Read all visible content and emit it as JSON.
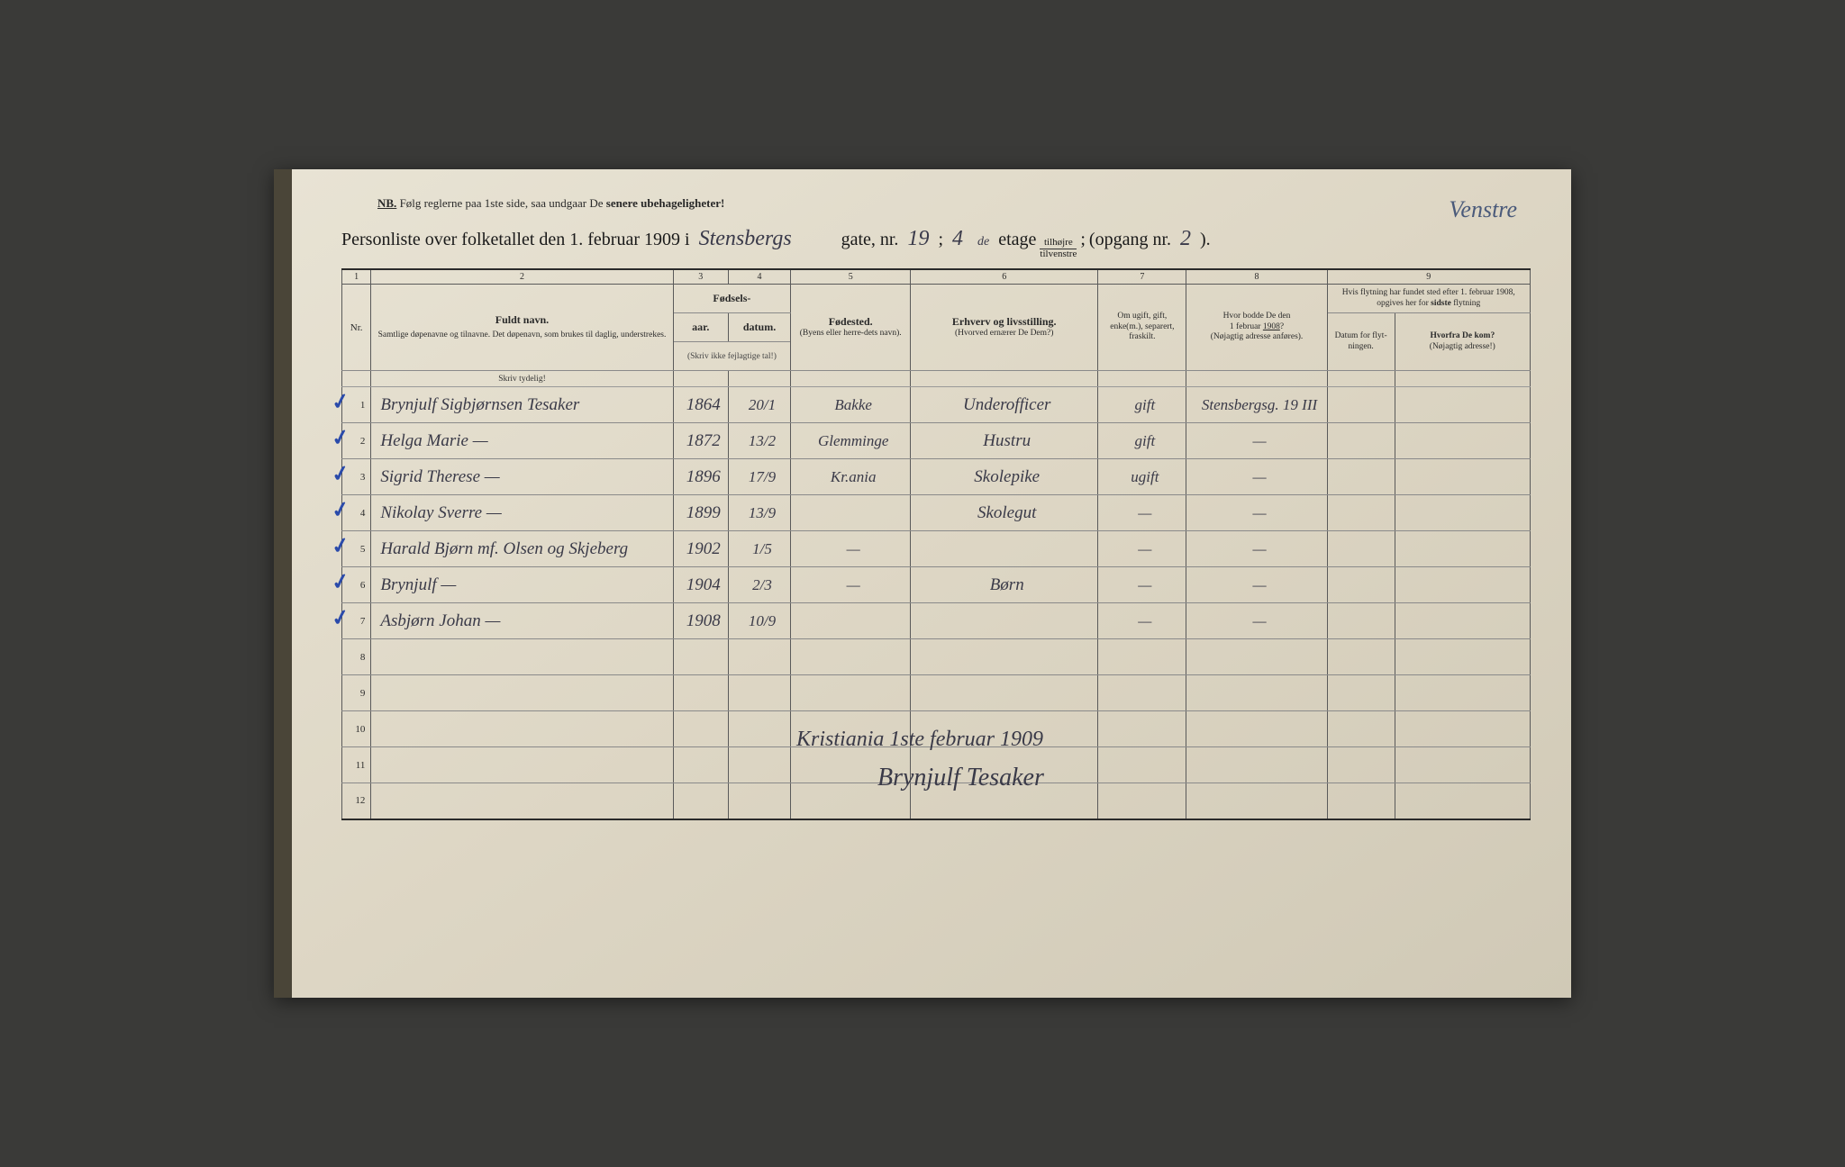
{
  "notice": {
    "nb": "NB.",
    "text1": "Følg reglerne paa 1ste side, saa undgaar De ",
    "text2": "senere ubehageligheter!"
  },
  "title": {
    "prefix": "Personliste over folketallet den 1. februar 1909 i",
    "street": "Stensbergs",
    "gate": "gate, nr.",
    "nr": "19",
    "semi": ";",
    "etage_nr": "4",
    "etage_sup": "de",
    "etage": "etage",
    "frac_top": "tilhøjre",
    "frac_bot": "tilvenstre",
    "semi2": ";",
    "opgang": "(opgang nr.",
    "opgang_nr": "2",
    "close": ")."
  },
  "top_note": "Venstre",
  "col_nums": [
    "1",
    "2",
    "3",
    "4",
    "5",
    "6",
    "7",
    "8",
    "9"
  ],
  "headers": {
    "nr": "Nr.",
    "name_main": "Fuldt navn.",
    "name_sub": "Samtlige døpenavne og tilnavne. Det døpenavn, som brukes til daglig, understrekes.",
    "fodsels": "Fødsels-",
    "aar": "aar.",
    "datum": "datum.",
    "fodsels_hint": "(Skriv ikke fejlagtige tal!)",
    "fodested": "Fødested.",
    "fodested_sub": "(Byens eller herre-dets navn).",
    "erhverv": "Erhverv og livsstilling.",
    "erhverv_sub": "(Hvorved ernærer De Dem?)",
    "status": "Om ugift, gift, enke(m.), separert, fraskilt.",
    "addr_main": "Hvor bodde De den 1 februar 1908?",
    "addr_sub": "(Nøjagtig adresse anføres).",
    "move_main": "Hvis flytning har fundet sted efter 1. februar 1908, opgives her for sidste flytning",
    "move_datum": "Datum for flyt-ningen.",
    "move_from": "Hvorfra De kom?",
    "move_from_sub": "(Nøjagtig adresse!)",
    "skriv": "Skriv tydelig!"
  },
  "rows": [
    {
      "nr": "1",
      "name": "Brynjulf Sigbjørnsen Tesaker",
      "year": "1864",
      "date": "20/1",
      "place": "Bakke",
      "occ": "Underofficer",
      "status": "gift",
      "addr": "Stensbergsg. 19 III",
      "datum": "",
      "from": ""
    },
    {
      "nr": "2",
      "name": "Helga Marie        —",
      "year": "1872",
      "date": "13/2",
      "place": "Glemminge",
      "occ": "Hustru",
      "status": "gift",
      "addr": "—",
      "datum": "",
      "from": ""
    },
    {
      "nr": "3",
      "name": "Sigrid Therese        —",
      "year": "1896",
      "date": "17/9",
      "place": "Kr.ania",
      "occ": "Skolepike",
      "status": "ugift",
      "addr": "—",
      "datum": "",
      "from": ""
    },
    {
      "nr": "4",
      "name": "Nikolay Sverre        —",
      "year": "1899",
      "date": "13/9",
      "place": "",
      "occ": "Skolegut",
      "status": "—",
      "addr": "—",
      "datum": "",
      "from": ""
    },
    {
      "nr": "5",
      "name": "Harald Bjørn   mf. Olsen og Skjeberg",
      "year": "1902",
      "date": "1/5",
      "place": "—",
      "occ": "",
      "status": "—",
      "addr": "—",
      "datum": "",
      "from": ""
    },
    {
      "nr": "6",
      "name": "Brynjulf        —",
      "year": "1904",
      "date": "2/3",
      "place": "—",
      "occ": "Børn",
      "status": "—",
      "addr": "—",
      "datum": "",
      "from": ""
    },
    {
      "nr": "7",
      "name": "Asbjørn Johan        —",
      "year": "1908",
      "date": "10/9",
      "place": "",
      "occ": "",
      "status": "—",
      "addr": "—",
      "datum": "",
      "from": ""
    }
  ],
  "signature": {
    "line1": "Kristiania 1ste februar 1909",
    "line2": "Brynjulf Tesaker"
  }
}
